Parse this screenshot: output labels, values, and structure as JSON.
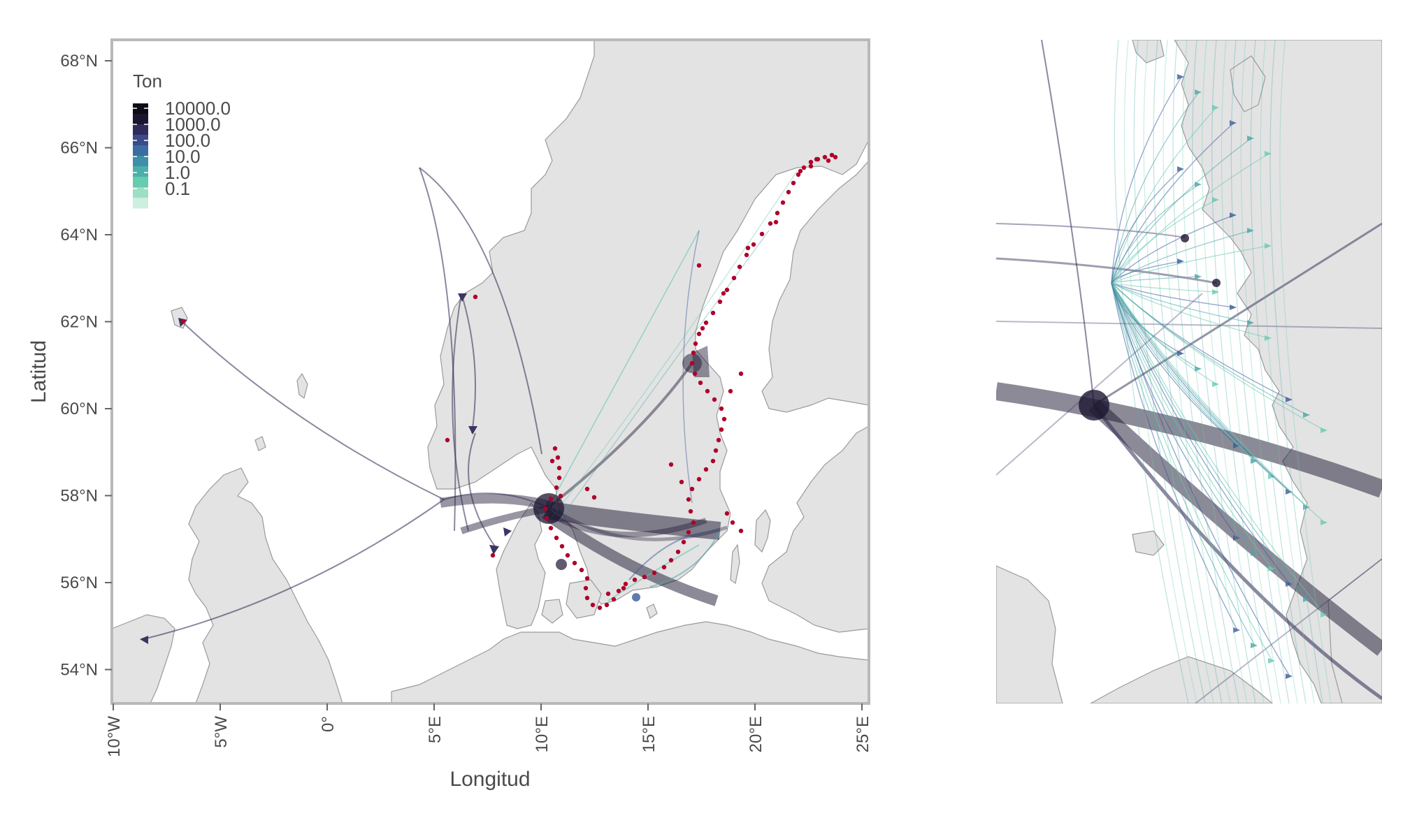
{
  "map": {
    "x_axis_title": "Longitud",
    "y_axis_title": "Latitud",
    "x_ticks": [
      "10°W",
      "5°W",
      "0°",
      "5°E",
      "10°E",
      "15°E",
      "20°E",
      "25°E"
    ],
    "y_ticks": [
      "68°N",
      "66°N",
      "64°N",
      "62°N",
      "60°N",
      "58°N",
      "56°N",
      "54°N"
    ],
    "legend": {
      "title": "Ton",
      "labels": [
        "10000.0",
        "1000.0",
        "100.0",
        "10.0",
        "1.0",
        "0.1"
      ]
    }
  },
  "colors": {
    "land": "#e3e3e3",
    "coast": "#9a9a9a",
    "port_points": "#b0002a",
    "flow_high": "#1c1530",
    "flow_mid": "#3b5a9a",
    "flow_low": "#5fc7b0"
  }
}
